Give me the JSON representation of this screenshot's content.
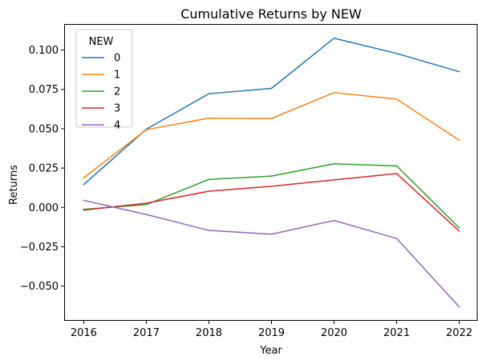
{
  "chart_data": {
    "type": "line",
    "title": "Cumulative Returns by NEW",
    "xlabel": "Year",
    "ylabel": "Returns",
    "x": [
      2016,
      2017,
      2018,
      2019,
      2020,
      2021,
      2022
    ],
    "xlim": [
      2015.7,
      2022.3
    ],
    "ylim": [
      -0.0715,
      0.1165
    ],
    "yticks": [
      -0.05,
      -0.025,
      0.0,
      0.025,
      0.05,
      0.075,
      0.1
    ],
    "ytick_labels": [
      "−0.050",
      "−0.025",
      "0.000",
      "0.025",
      "0.050",
      "0.075",
      "0.100"
    ],
    "grid": false,
    "legend": {
      "title": "NEW",
      "placement": "top-left"
    },
    "series": [
      {
        "name": "0",
        "color": "#1f77b4",
        "values": [
          0.0145,
          0.0497,
          0.0722,
          0.0756,
          0.1075,
          0.0978,
          0.0862
        ]
      },
      {
        "name": "1",
        "color": "#ff7f0e",
        "values": [
          0.0188,
          0.0494,
          0.0567,
          0.0565,
          0.0729,
          0.0688,
          0.0427
        ]
      },
      {
        "name": "2",
        "color": "#2ca02c",
        "values": [
          -0.0012,
          0.0018,
          0.0178,
          0.0199,
          0.0277,
          0.0264,
          -0.013
        ]
      },
      {
        "name": "3",
        "color": "#d62728",
        "values": [
          -0.0017,
          0.0027,
          0.0103,
          0.0134,
          0.0175,
          0.0215,
          -0.015
        ]
      },
      {
        "name": "4",
        "color": "#9467bd",
        "values": [
          0.0045,
          -0.0045,
          -0.0146,
          -0.017,
          -0.0083,
          -0.0197,
          -0.0632
        ]
      }
    ]
  }
}
